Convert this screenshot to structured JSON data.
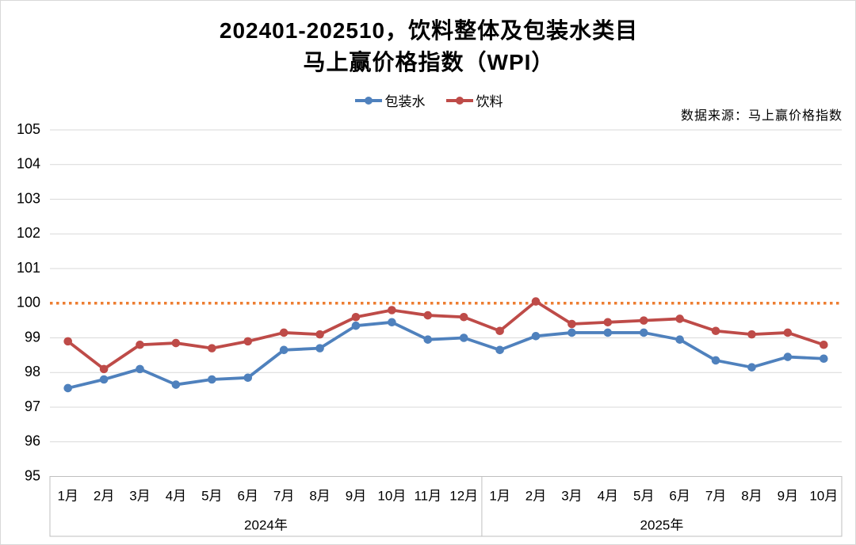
{
  "title": {
    "line1": "202401-202510，饮料整体及包装水类目",
    "line2": "马上赢价格指数（WPI）"
  },
  "source_note": "数据来源：马上赢价格指数",
  "colors": {
    "packaged_water": "#4F81BD",
    "beverage": "#BE4B48",
    "reference_line": "#ED7D31",
    "gridline": "#D9D9D9",
    "axis_box": "#BFBFBF"
  },
  "chart_data": {
    "type": "line",
    "title": "202401-202510，饮料整体及包装水类目 马上赢价格指数（WPI）",
    "ylim": [
      95,
      105
    ],
    "ytick_step": 1,
    "grid": "horizontal",
    "legend_position": "top",
    "reference_line": {
      "value": 100,
      "style": "dotted",
      "color": "#ED7D31"
    },
    "x_groups": [
      {
        "year": "2024年",
        "months": [
          "1月",
          "2月",
          "3月",
          "4月",
          "5月",
          "6月",
          "7月",
          "8月",
          "9月",
          "10月",
          "11月",
          "12月"
        ]
      },
      {
        "year": "2025年",
        "months": [
          "1月",
          "2月",
          "3月",
          "4月",
          "5月",
          "6月",
          "7月",
          "8月",
          "9月",
          "10月"
        ]
      }
    ],
    "series": [
      {
        "name": "包装水",
        "key": "packaged-water",
        "color": "#4F81BD",
        "values": [
          97.55,
          97.8,
          98.1,
          97.65,
          97.8,
          97.85,
          98.65,
          98.7,
          99.35,
          99.45,
          98.95,
          99.0,
          98.65,
          99.05,
          99.15,
          99.15,
          99.15,
          98.95,
          98.35,
          98.15,
          98.45,
          98.4
        ]
      },
      {
        "name": "饮料",
        "key": "beverage",
        "color": "#BE4B48",
        "values": [
          98.9,
          98.1,
          98.8,
          98.85,
          98.7,
          98.9,
          99.15,
          99.1,
          99.6,
          99.8,
          99.65,
          99.6,
          99.2,
          100.05,
          99.4,
          99.45,
          99.5,
          99.55,
          99.2,
          99.1,
          99.15,
          98.8
        ]
      }
    ]
  }
}
